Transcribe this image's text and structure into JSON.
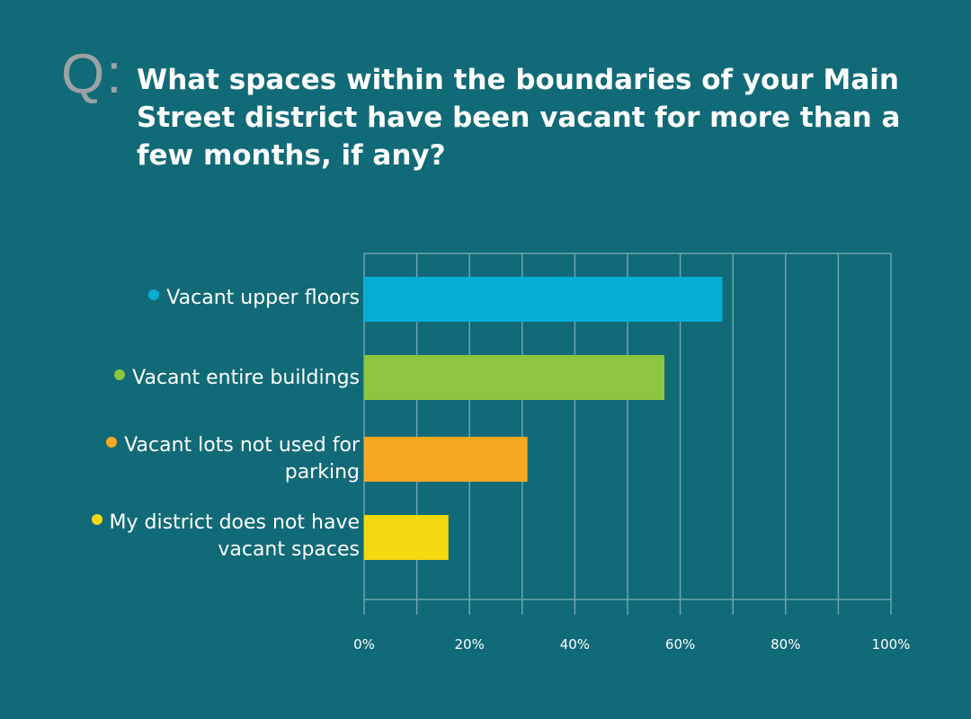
{
  "question": {
    "prefix": "Q:",
    "text": "What spaces within the boundaries of your Main Street district have been vacant for more than a few months, if any?"
  },
  "chart_data": {
    "type": "bar",
    "orientation": "horizontal",
    "categories": [
      "Vacant upper floors",
      "Vacant entire buildings",
      "Vacant lots not used for parking",
      "My district does not have vacant spaces"
    ],
    "values": [
      68,
      57,
      31,
      16
    ],
    "colors": [
      "#06aed5",
      "#8cc63f",
      "#f7a823",
      "#f5d90f"
    ],
    "xlim": [
      0,
      100
    ],
    "x_ticks": [
      "0%",
      "20%",
      "40%",
      "60%",
      "80%",
      "100%"
    ],
    "x_tick_values": [
      0,
      20,
      40,
      60,
      80,
      100
    ],
    "grid": true,
    "grid_step": 10,
    "grid_color": "#6fa5ad",
    "background": "#116a77"
  }
}
